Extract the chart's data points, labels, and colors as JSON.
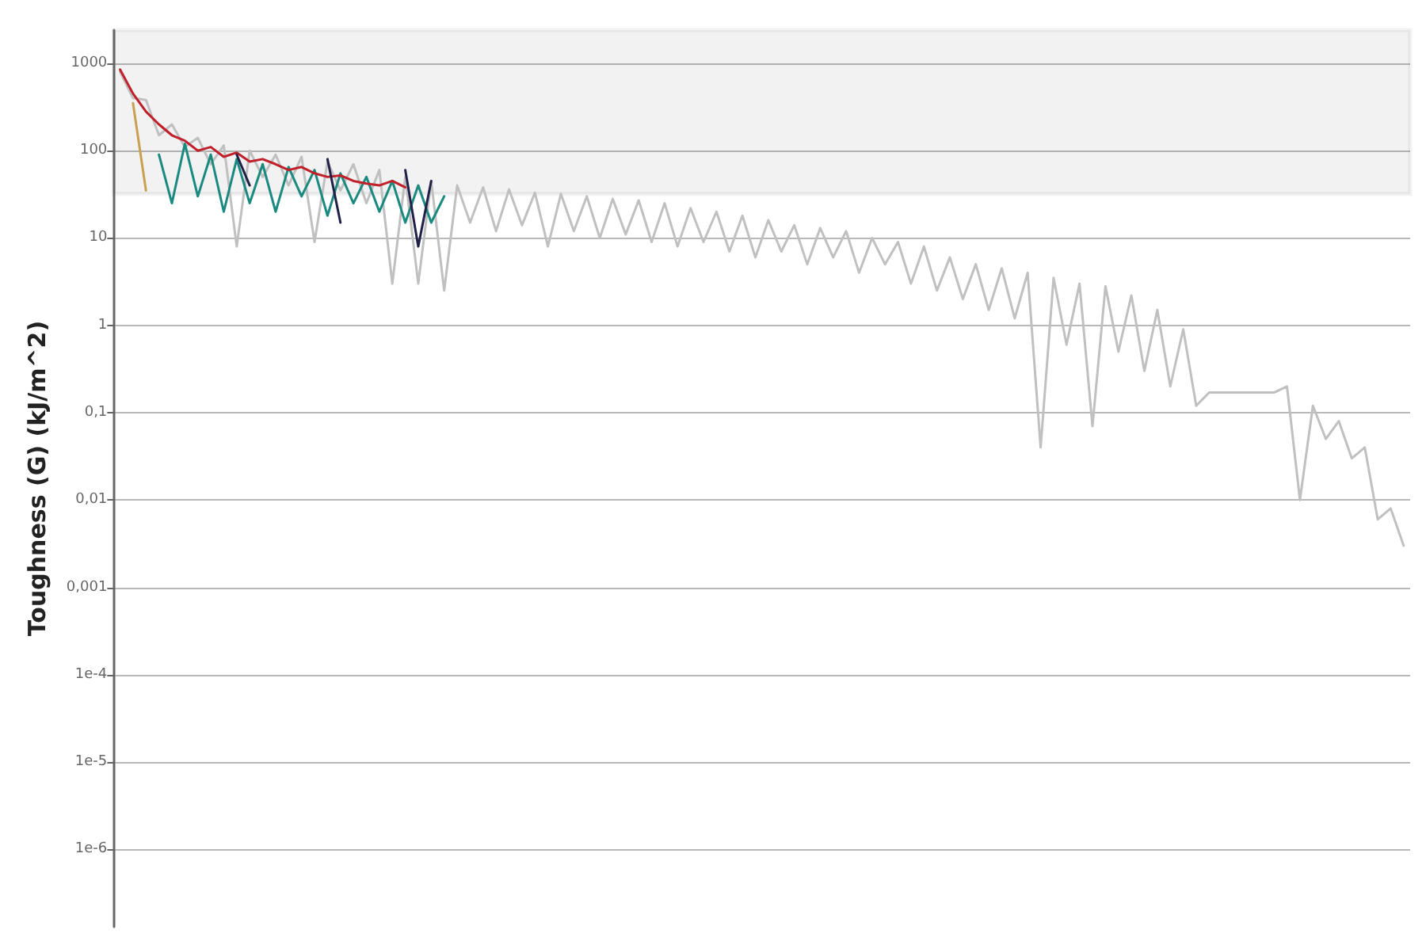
{
  "chart_data": {
    "type": "line",
    "ylabel": "Toughness (G) (kJ/m^2)",
    "categories": [
      null,
      null,
      null,
      null,
      null,
      null,
      null,
      null,
      null,
      null,
      null,
      null,
      null,
      null,
      null,
      null,
      null,
      null,
      null,
      null,
      null,
      null,
      null,
      null,
      null,
      null,
      null,
      null,
      null,
      null,
      null,
      null,
      null,
      null,
      null,
      null,
      null,
      null,
      null,
      null,
      null,
      null,
      null,
      null,
      null,
      null,
      null,
      null,
      null,
      null,
      null,
      null,
      null,
      null,
      null,
      null,
      null,
      null,
      null,
      null,
      null,
      null,
      null,
      null,
      null,
      null,
      null,
      null,
      null,
      null,
      null,
      null,
      null,
      null,
      null,
      null,
      null,
      null,
      null,
      null,
      null,
      null,
      null,
      null,
      null,
      null,
      null,
      null,
      null,
      null,
      null,
      null,
      null,
      null,
      null,
      null,
      null,
      null,
      null,
      null
    ],
    "series": [
      {
        "color": "#c0c0c0",
        "values": [
          800,
          400,
          380,
          150,
          200,
          110,
          140,
          70,
          115,
          8,
          100,
          50,
          90,
          40,
          85,
          9,
          75,
          35,
          70,
          25,
          60,
          3,
          50,
          3,
          45,
          2.5,
          40,
          15,
          38,
          12,
          36,
          14,
          33,
          8,
          32,
          12,
          30,
          10,
          28,
          11,
          27,
          9,
          25,
          8,
          22,
          9,
          20,
          7,
          18,
          6,
          16,
          7,
          14,
          5,
          13,
          6,
          12,
          4,
          10,
          5,
          9,
          3,
          8,
          2.5,
          6,
          2,
          5,
          1.5,
          4.5,
          1.2,
          4,
          0.04,
          3.5,
          0.6,
          3,
          0.07,
          2.8,
          0.5,
          2.2,
          0.3,
          1.5,
          0.2,
          0.9,
          0.12,
          0.17,
          0.17,
          0.17,
          0.17,
          0.17,
          0.17,
          0.2,
          0.01,
          0.12,
          0.05,
          0.08,
          0.03,
          0.04,
          0.006,
          0.008,
          0.003
        ]
      },
      {
        "color": "#1a8a80",
        "values": [
          null,
          null,
          null,
          90,
          25,
          120,
          30,
          90,
          20,
          80,
          25,
          70,
          20,
          65,
          30,
          60,
          18,
          55,
          25,
          50,
          20,
          45,
          15,
          40,
          15,
          30,
          null,
          null,
          null,
          null,
          null,
          null,
          null,
          null,
          null,
          null,
          null,
          null,
          null,
          null,
          null,
          null,
          null,
          null,
          null,
          null,
          null,
          null,
          null,
          null,
          null,
          null,
          null,
          null,
          null,
          null,
          null,
          null,
          null,
          null,
          null,
          null,
          null,
          null,
          null,
          null,
          null,
          null,
          null,
          null,
          null,
          null,
          null,
          null,
          null,
          null,
          null,
          null,
          null,
          null,
          null,
          null,
          null,
          null,
          null,
          null,
          null,
          null,
          null,
          null,
          null,
          null,
          null,
          null,
          null,
          null,
          null,
          null,
          null,
          null
        ]
      },
      {
        "color": "#c0202a",
        "values": [
          850,
          450,
          280,
          200,
          150,
          130,
          100,
          110,
          85,
          95,
          75,
          80,
          70,
          60,
          65,
          55,
          50,
          52,
          45,
          42,
          40,
          45,
          38,
          null,
          null,
          null,
          null,
          null,
          null,
          null,
          null,
          null,
          null,
          null,
          null,
          null,
          null,
          null,
          null,
          null,
          null,
          null,
          null,
          null,
          null,
          null,
          null,
          null,
          null,
          null,
          null,
          null,
          null,
          null,
          null,
          null,
          null,
          null,
          null,
          null,
          null,
          null,
          null,
          null,
          null,
          null,
          null,
          null,
          null,
          null,
          null,
          null,
          null,
          null,
          null,
          null,
          null,
          null,
          null,
          null,
          null,
          null,
          null,
          null,
          null,
          null,
          null,
          null,
          null,
          null,
          null,
          null,
          null,
          null,
          null,
          null,
          null,
          null,
          null,
          null
        ]
      },
      {
        "color": "#202048",
        "values": [
          null,
          null,
          null,
          null,
          null,
          null,
          null,
          null,
          null,
          90,
          40,
          null,
          null,
          null,
          null,
          null,
          80,
          15,
          null,
          null,
          null,
          null,
          60,
          8,
          45,
          null,
          null,
          null,
          null,
          null,
          null,
          null,
          null,
          null,
          null,
          null,
          null,
          null,
          null,
          null,
          null,
          null,
          null,
          null,
          null,
          null,
          null,
          null,
          null,
          null,
          null,
          null,
          null,
          null,
          null,
          null,
          null,
          null,
          null,
          null,
          null,
          null,
          null,
          null,
          null,
          null,
          null,
          null,
          null,
          null,
          null,
          null,
          null,
          null,
          null,
          null,
          null,
          null,
          null,
          null,
          null,
          null,
          null,
          null,
          null,
          null,
          null,
          null,
          null,
          null,
          null,
          null,
          null,
          null,
          null,
          null,
          null,
          null,
          null,
          null
        ]
      },
      {
        "color": "#c8a050",
        "values": [
          null,
          350,
          35,
          null,
          null,
          null,
          null,
          null,
          null,
          null,
          null,
          null,
          null,
          null,
          null,
          null,
          null,
          null,
          null,
          null,
          null,
          null,
          null,
          null,
          null,
          null,
          null,
          null,
          null,
          null,
          null,
          null,
          null,
          null,
          null,
          null,
          null,
          null,
          null,
          null,
          null,
          null,
          null,
          null,
          null,
          null,
          null,
          null,
          null,
          null,
          null,
          null,
          null,
          null,
          null,
          null,
          null,
          null,
          null,
          null,
          null,
          null,
          null,
          null,
          null,
          null,
          null,
          null,
          null,
          null,
          null,
          null,
          null,
          null,
          null,
          null,
          null,
          null,
          null,
          null,
          null,
          null,
          null,
          null,
          null,
          null,
          null,
          null,
          null,
          null,
          null,
          null,
          null,
          null,
          null,
          null,
          null,
          null,
          null,
          null
        ]
      }
    ],
    "log": true,
    "ylim": [
      1.3e-07,
      2400
    ],
    "yticks": [
      {
        "value": 1000,
        "label": "1000"
      },
      {
        "value": 100,
        "label": "100"
      },
      {
        "value": 10,
        "label": "10"
      },
      {
        "value": 1,
        "label": "1"
      },
      {
        "value": 0.1,
        "label": "0,1"
      },
      {
        "value": 0.01,
        "label": "0,01"
      },
      {
        "value": 0.001,
        "label": "0,001"
      },
      {
        "value": 0.0001,
        "label": "1e-4"
      },
      {
        "value": 1e-05,
        "label": "1e-5"
      },
      {
        "value": 1e-06,
        "label": "1e-6"
      }
    ],
    "grid": "y",
    "tick_labels": "y",
    "bands": [
      {
        "axis": "y",
        "from": 32,
        "to": 2400,
        "color": "#555555"
      }
    ]
  }
}
